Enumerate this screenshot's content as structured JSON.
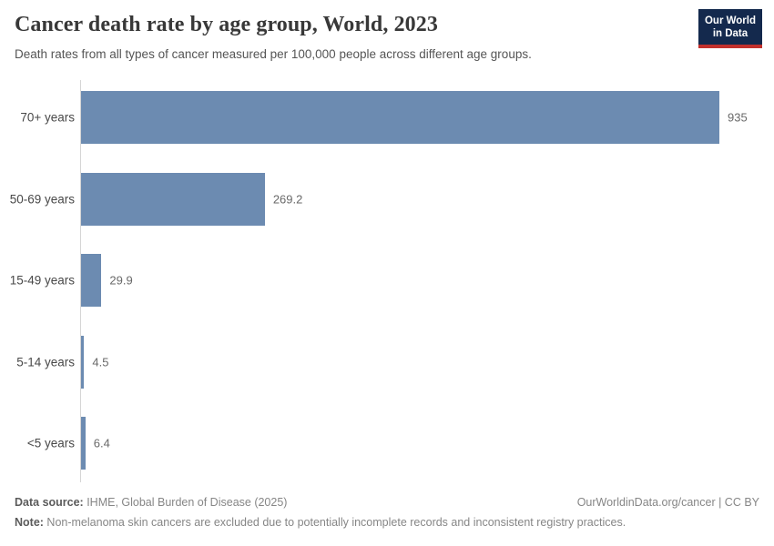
{
  "header": {
    "title": "Cancer death rate by age group, World, 2023",
    "subtitle": "Death rates from all types of cancer measured per 100,000 people across different age groups.",
    "logo_line1": "Our World",
    "logo_line2": "in Data"
  },
  "chart_data": {
    "type": "bar",
    "orientation": "horizontal",
    "title": "Cancer death rate by age group, World, 2023",
    "categories": [
      "70+ years",
      "50-69 years",
      "15-49 years",
      "5-14 years",
      "<5 years"
    ],
    "values": [
      935,
      269.2,
      29.9,
      4.5,
      6.4
    ],
    "value_labels": [
      "935",
      "269.2",
      "29.9",
      "4.5",
      "6.4"
    ],
    "xlabel": "",
    "ylabel": "",
    "xlim": [
      0,
      935
    ],
    "grid": false,
    "legend": "none",
    "bar_color": "#6c8bb1",
    "unit": "deaths per 100,000 people"
  },
  "footer": {
    "source_label": "Data source:",
    "source_text": " IHME, Global Burden of Disease (2025)",
    "credit": "OurWorldinData.org/cancer | CC BY",
    "note_label": "Note:",
    "note_text": " Non-melanoma skin cancers are excluded due to potentially incomplete records and inconsistent registry practices."
  },
  "colors": {
    "bar": "#6c8bb1",
    "logo_navy": "#14294d",
    "logo_red": "#c2302c",
    "axis": "#d5d5d5",
    "title_text": "#383838",
    "subtitle_text": "#555555",
    "footer_text": "#868686"
  }
}
